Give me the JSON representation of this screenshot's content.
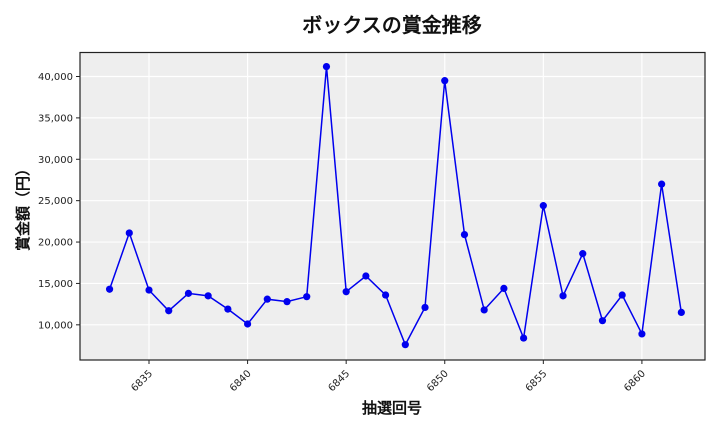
{
  "chart_data": {
    "type": "line",
    "title": "ボックスの賞金推移",
    "xlabel": "抽選回号",
    "ylabel": "賞金額（円）",
    "x": [
      6833,
      6834,
      6835,
      6836,
      6837,
      6838,
      6839,
      6840,
      6841,
      6842,
      6843,
      6844,
      6845,
      6846,
      6847,
      6848,
      6849,
      6850,
      6851,
      6852,
      6853,
      6854,
      6855,
      6856,
      6857,
      6858,
      6859,
      6860,
      6861,
      6862
    ],
    "series": [
      {
        "name": "ボックス",
        "color": "#0000ee",
        "values": [
          14300,
          21100,
          14200,
          11700,
          13800,
          13500,
          11900,
          10100,
          13100,
          12800,
          13400,
          41200,
          14000,
          15900,
          13600,
          7600,
          12100,
          39500,
          20900,
          11800,
          14400,
          8400,
          24400,
          13500,
          18600,
          10500,
          13600,
          8900,
          27000,
          11500
        ]
      }
    ],
    "xticks": [
      6835,
      6840,
      6845,
      6850,
      6855,
      6860
    ],
    "xtick_labels": [
      "6835",
      "6840",
      "6845",
      "6850",
      "6855",
      "6860"
    ],
    "yticks": [
      10000,
      15000,
      20000,
      25000,
      30000,
      35000,
      40000
    ],
    "ytick_labels": [
      "10,000",
      "15,000",
      "20,000",
      "25,000",
      "30,000",
      "35,000",
      "40,000"
    ],
    "xlim": [
      6831.5,
      6863.2
    ],
    "ylim": [
      5750,
      42900
    ],
    "grid": true,
    "legend": null
  },
  "style": {
    "plot_bg": "#eeeeee",
    "grid_color": "#ffffff",
    "line_color": "#0000ee",
    "frame_color": "#222222"
  }
}
